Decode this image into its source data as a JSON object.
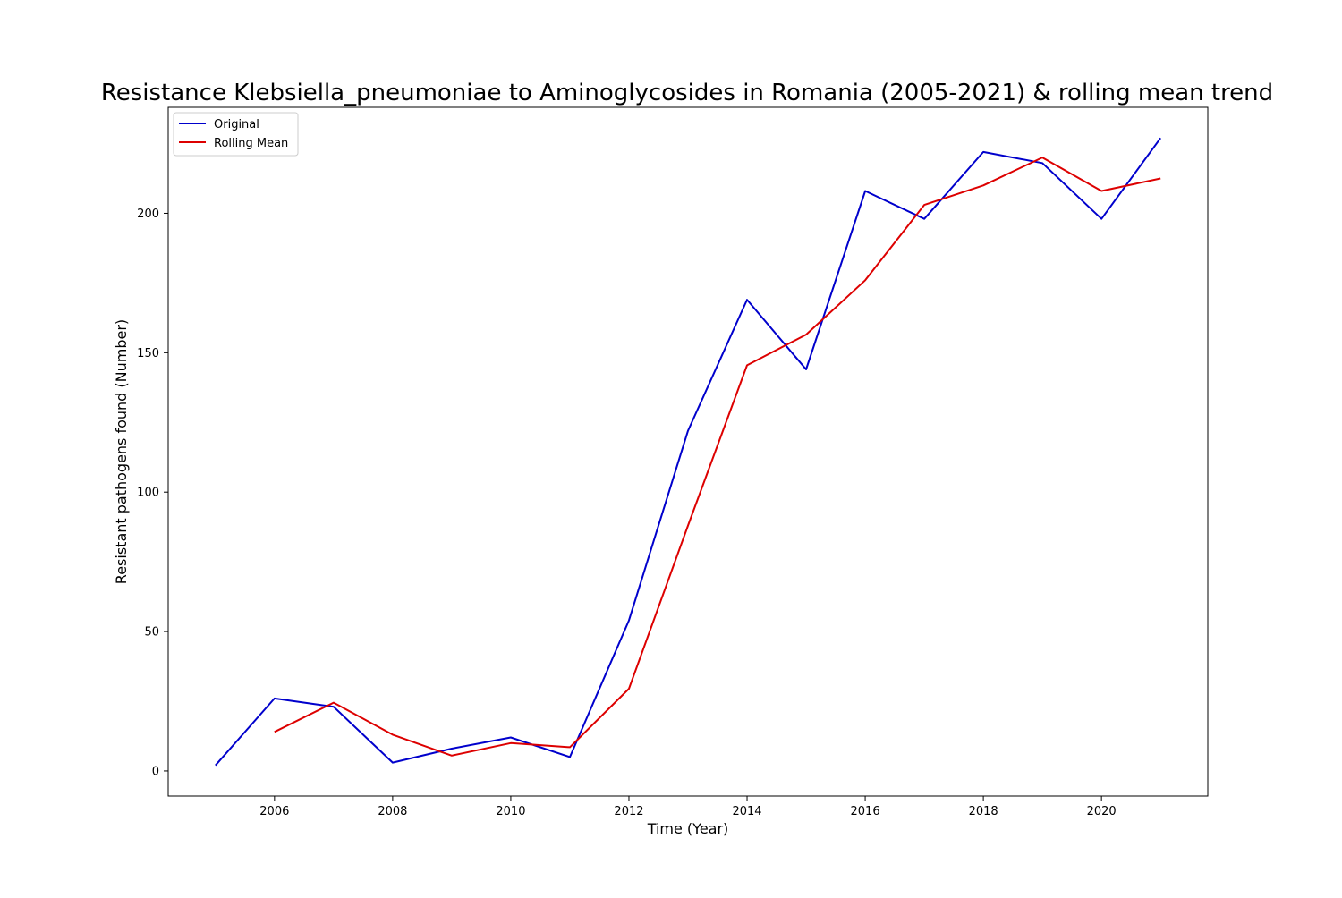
{
  "chart_data": {
    "type": "line",
    "title": "Resistance Klebsiella_pneumoniae to Aminoglycosides in Romania (2005-2021) & rolling mean trend",
    "xlabel": "Time (Year)",
    "ylabel": "Resistant pathogens found (Number)",
    "xlim": [
      2004.2,
      2021.8
    ],
    "ylim": [
      -9,
      238
    ],
    "xticks": [
      2006,
      2008,
      2010,
      2012,
      2014,
      2016,
      2018,
      2020
    ],
    "xtick_labels": [
      "2006",
      "2008",
      "2010",
      "2012",
      "2014",
      "2016",
      "2018",
      "2020"
    ],
    "yticks": [
      0,
      50,
      100,
      150,
      200
    ],
    "ytick_labels": [
      "0",
      "50",
      "100",
      "150",
      "200"
    ],
    "grid": false,
    "legend_position": "top-left",
    "series": [
      {
        "name": "Original",
        "color": "#0000cc",
        "x": [
          2005,
          2006,
          2007,
          2008,
          2009,
          2010,
          2011,
          2012,
          2013,
          2014,
          2015,
          2016,
          2017,
          2018,
          2019,
          2020,
          2021
        ],
        "values": [
          2,
          26,
          23,
          3,
          8,
          12,
          5,
          54,
          122,
          169,
          144,
          208,
          198,
          222,
          218,
          198,
          227
        ]
      },
      {
        "name": "Rolling Mean",
        "color": "#dd0000",
        "x": [
          2006,
          2007,
          2008,
          2009,
          2010,
          2011,
          2012,
          2013,
          2014,
          2015,
          2016,
          2017,
          2018,
          2019,
          2020,
          2021
        ],
        "values": [
          14,
          24.5,
          13,
          5.5,
          10,
          8.5,
          29.5,
          88,
          145.5,
          156.5,
          176,
          203,
          210,
          220,
          208,
          212.5
        ]
      }
    ]
  }
}
